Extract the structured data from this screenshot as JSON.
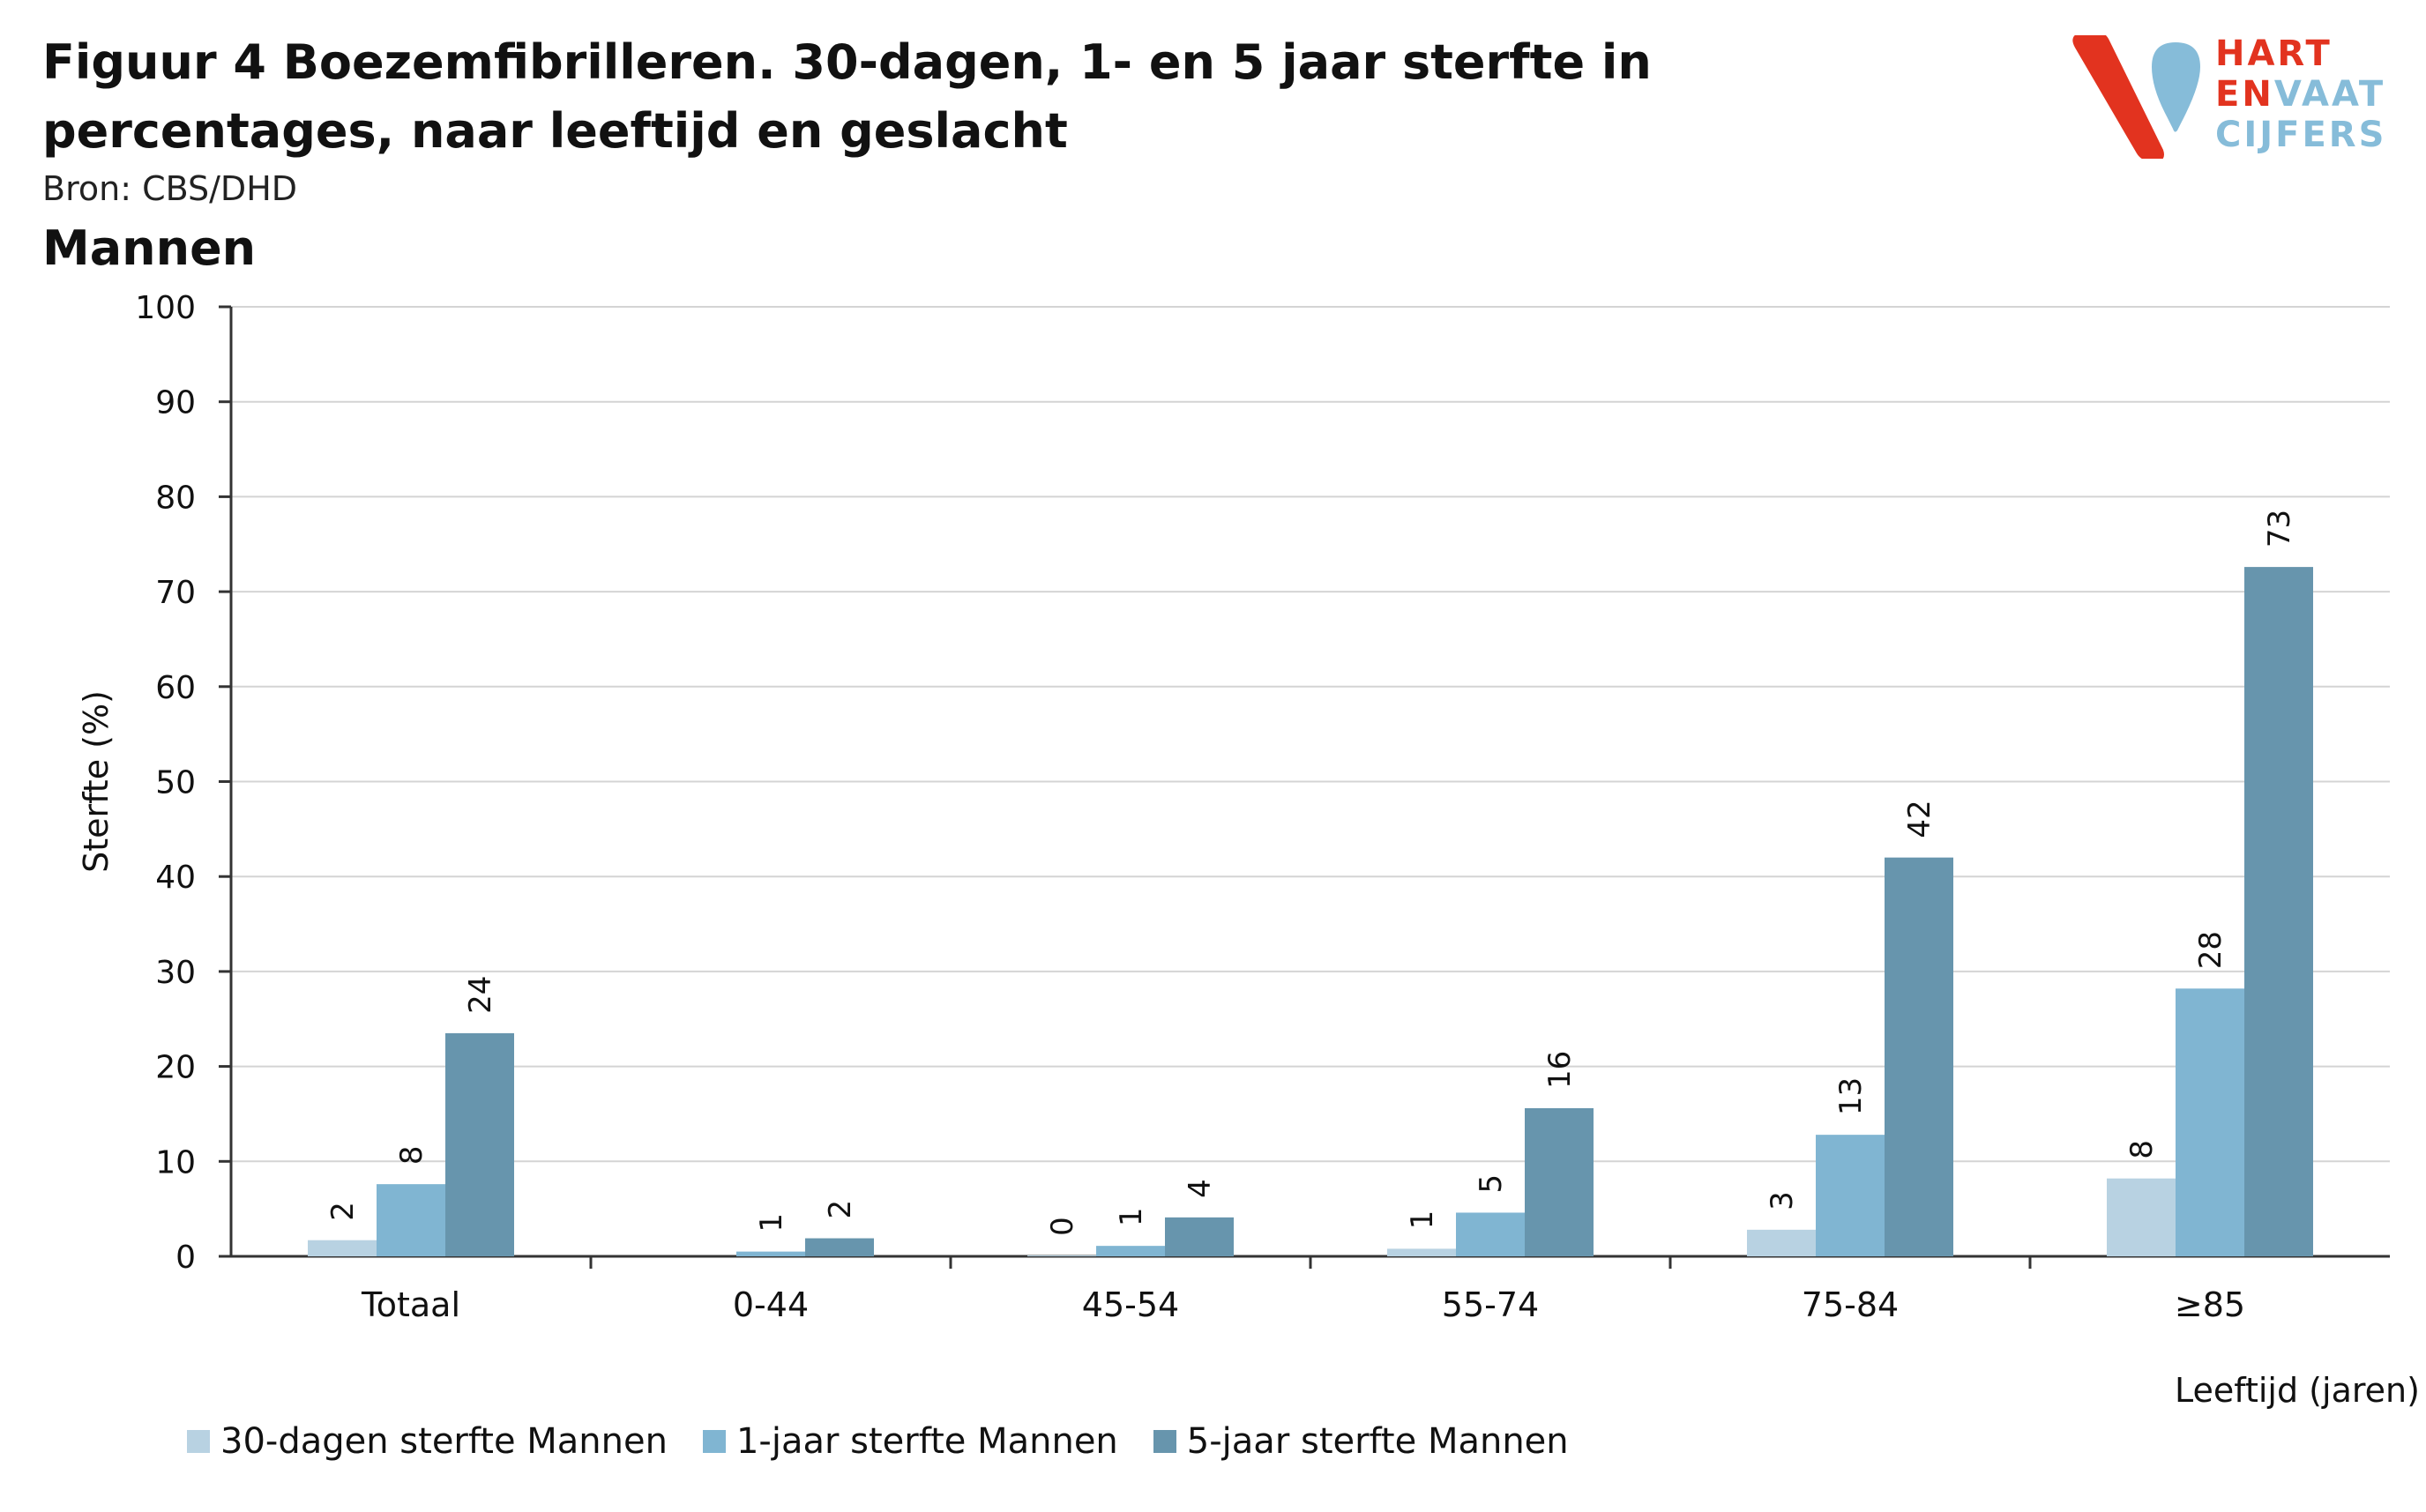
{
  "header": {
    "title": "Figuur 4 Boezemfibrilleren. 30-dagen, 1- en 5 jaar sterfte in percentages, naar leeftijd en geslacht",
    "source": "Bron: CBS/DHD",
    "subtitle": "Mannen"
  },
  "logo": {
    "line1": "HART",
    "line2a": "EN",
    "line2b": "VAAT",
    "line3": "CIJFERS",
    "colors": {
      "red": "#e2331f",
      "blue": "#86bcd9"
    }
  },
  "chart_data": {
    "type": "bar",
    "categories": [
      "Totaal",
      "0-44",
      "45-54",
      "55-74",
      "75-84",
      "≥85"
    ],
    "series": [
      {
        "name": "30-dagen sterfte Mannen",
        "color": "#b8d2e2",
        "values": [
          1.7,
          null,
          0.1,
          0.8,
          2.8,
          8.2
        ],
        "labels": [
          "2",
          "",
          "0",
          "1",
          "3",
          "8"
        ]
      },
      {
        "name": "1-jaar sterfte Mannen",
        "color": "#80b5d2",
        "values": [
          7.6,
          0.5,
          1.1,
          4.6,
          12.8,
          28.2
        ],
        "labels": [
          "8",
          "1",
          "1",
          "5",
          "13",
          "28"
        ]
      },
      {
        "name": "5-jaar sterfte Mannen",
        "color": "#6795ad",
        "values": [
          23.5,
          1.9,
          4.1,
          15.6,
          42.0,
          72.6
        ],
        "labels": [
          "24",
          "2",
          "4",
          "16",
          "42",
          "73"
        ]
      }
    ],
    "ylabel": "Sterfte (%)",
    "xlabel": "Leeftijd (jaren)",
    "ylim": [
      0,
      100
    ],
    "yticks": [
      0,
      10,
      20,
      30,
      40,
      50,
      60,
      70,
      80,
      90,
      100
    ],
    "grid": true,
    "legend": "bottom-left"
  }
}
